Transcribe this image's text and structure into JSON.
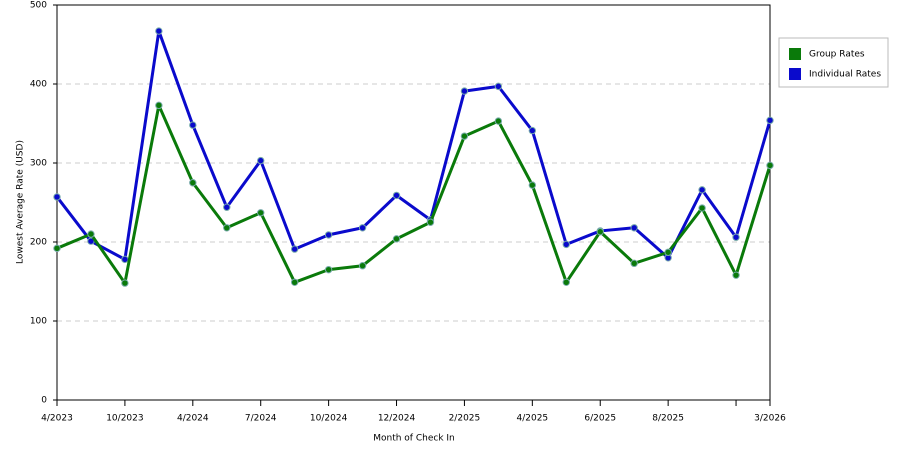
{
  "chart_data": {
    "type": "line",
    "x_label": "Month of Check In",
    "y_label": "Lowest Average Rate (USD)",
    "categories": [
      "4/2023",
      null,
      "10/2023",
      null,
      "4/2024",
      null,
      "7/2024",
      null,
      "10/2024",
      null,
      "12/2024",
      null,
      "2/2025",
      null,
      "4/2025",
      null,
      "6/2025",
      null,
      "8/2025",
      null,
      null,
      "3/2026"
    ],
    "series": [
      {
        "name": "Group Rates",
        "color": "#0a7a0a",
        "values": [
          192,
          210,
          148,
          373,
          275,
          218,
          237,
          149,
          165,
          170,
          204,
          225,
          334,
          353,
          272,
          149,
          213,
          173,
          187,
          243,
          158,
          297
        ]
      },
      {
        "name": "Individual Rates",
        "color": "#0a0acc",
        "values": [
          257,
          201,
          178,
          467,
          348,
          244,
          303,
          191,
          209,
          218,
          259,
          228,
          391,
          397,
          341,
          197,
          214,
          218,
          180,
          266,
          206,
          354
        ]
      }
    ],
    "ylim": [
      0,
      500
    ],
    "yticks": [
      0,
      100,
      200,
      300,
      400,
      500
    ],
    "grid": true,
    "legend": "right"
  }
}
